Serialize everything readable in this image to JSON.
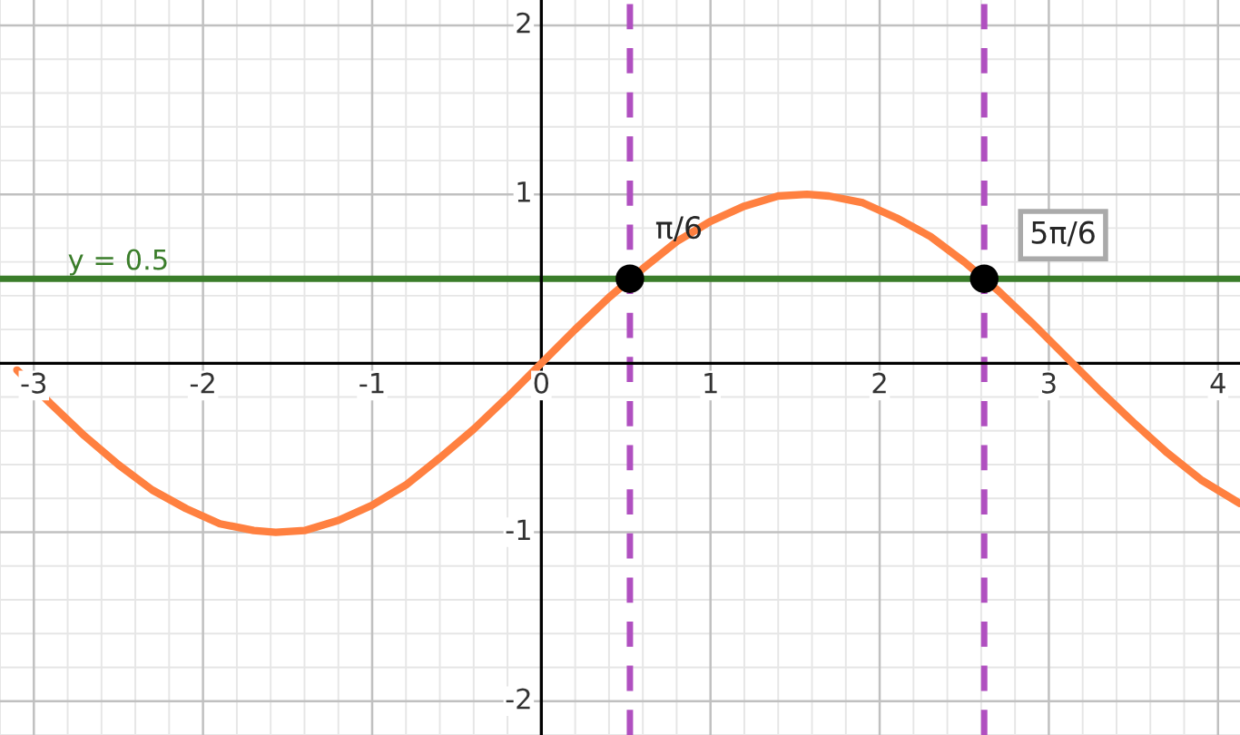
{
  "chart_data": {
    "type": "line",
    "xlim": [
      -3.2,
      4.13
    ],
    "ylim": [
      -2.2,
      2.15
    ],
    "xticks": [
      -3,
      -2,
      -1,
      0,
      1,
      2,
      3,
      4
    ],
    "yticks": [
      -2,
      -1,
      1,
      2
    ],
    "grid": true,
    "series": [
      {
        "color": "#ff8040",
        "x": [
          -3.1,
          -2.9,
          -2.7,
          -2.5,
          -2.3,
          -2.1,
          -1.9,
          -1.7,
          -1.57,
          -1.4,
          -1.2,
          -1.0,
          -0.8,
          -0.6,
          -0.4,
          -0.2,
          0,
          0.2,
          0.4,
          0.6,
          0.8,
          1.0,
          1.2,
          1.4,
          1.57,
          1.7,
          1.9,
          2.1,
          2.3,
          2.5,
          2.7,
          2.9,
          3.1,
          3.3,
          3.5,
          3.7,
          3.9,
          4.13
        ],
        "values": [
          -0.04,
          -0.24,
          -0.43,
          -0.6,
          -0.75,
          -0.86,
          -0.95,
          -0.99,
          -1.0,
          -0.99,
          -0.93,
          -0.84,
          -0.72,
          -0.56,
          -0.39,
          -0.2,
          0,
          0.2,
          0.39,
          0.56,
          0.72,
          0.84,
          0.93,
          0.99,
          1.0,
          0.99,
          0.95,
          0.86,
          0.75,
          0.6,
          0.43,
          0.24,
          0.04,
          -0.16,
          -0.35,
          -0.53,
          -0.69,
          -0.83
        ]
      },
      {
        "type": "scatter",
        "color": "#000000",
        "marker": "circle",
        "x": [
          0.5236,
          2.618
        ],
        "values": [
          0.5,
          0.5
        ]
      }
    ],
    "ref_lines": [
      {
        "axis": "y",
        "value": 0.5,
        "label": "y = 0.5",
        "color": "#3a7d2a",
        "line_style": "solid"
      },
      {
        "axis": "x",
        "value": 0.5236,
        "color": "#b050c0",
        "line_style": "dashed"
      },
      {
        "axis": "x",
        "value": 2.618,
        "color": "#b050c0",
        "line_style": "dashed"
      }
    ],
    "annotations": [
      {
        "text": "π/6",
        "x": 0.5236,
        "y": 0.5
      },
      {
        "text": "5π/6",
        "x": 2.618,
        "y": 0.5
      }
    ]
  }
}
